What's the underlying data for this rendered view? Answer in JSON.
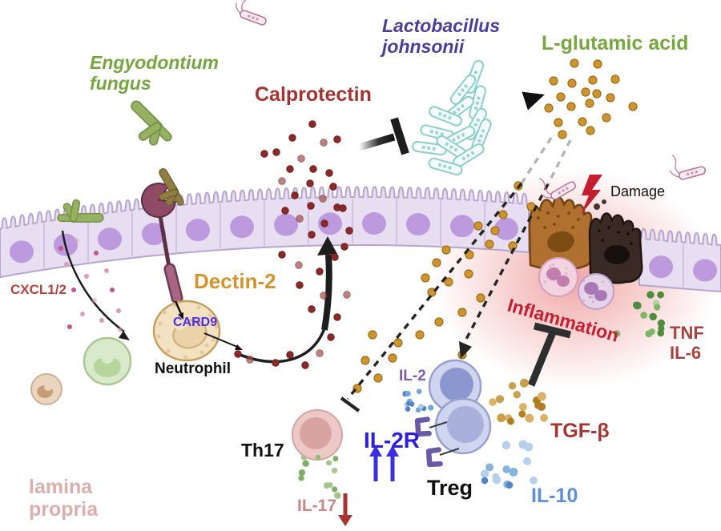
{
  "diagram": {
    "organisms": {
      "fungus": "Engyodontium\nfungus",
      "bacterium": "Lactobacillus\njohnsonii"
    },
    "molecules": {
      "calprotectin": "Calprotectin",
      "glutamic_acid": "L-glutamic acid",
      "cxcl": "CXCL1/2",
      "tnf_il6": "TNF\nIL-6",
      "tgf_beta": "TGF-β",
      "il10": "IL-10",
      "il2": "IL-2",
      "il2r": "IL-2R",
      "il17": "IL-17"
    },
    "receptors": {
      "dectin2": "Dectin-2",
      "card9": "CARD9"
    },
    "cells": {
      "neutrophil": "Neutrophil",
      "th17": "Th17",
      "treg": "Treg"
    },
    "tissue": {
      "lamina_propria": "lamina\npropria"
    },
    "annotations": {
      "damage": "Damage",
      "inflammation": "Inflammation"
    }
  },
  "colors": {
    "fungus_text": "#76a73e",
    "bacterium_text": "#4c3e99",
    "glutamic_text": "#76a73e",
    "calprotectin_text": "#a23531",
    "dectin2_text": "#d4932f",
    "card9_text": "#4b2ee8",
    "neutrophil_text": "#111111",
    "cxcl_text": "#b5423c",
    "lamina_text": "#dcaeae",
    "damage_text": "#111111",
    "inflammation_text": "#c41f33",
    "cytokine_red_text": "#a64440",
    "tgf_text": "#a83430",
    "il10_text": "#5e8fd3",
    "il2_text": "#7b5fae",
    "il2r_text": "#2c1fd9",
    "treg_text": "#111111",
    "th17_text": "#111111",
    "il17_text": "#c98884",
    "glutamic_dot": "#cd9430",
    "calprotectin_dot": "#8e2727",
    "epithelium_fill": "#e7def2",
    "inflammation_glow": "#e34d4d"
  }
}
